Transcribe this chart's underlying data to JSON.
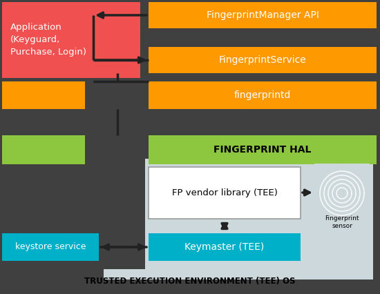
{
  "colors": {
    "red": "#f05050",
    "orange": "#ff9900",
    "green": "#8dc63f",
    "cyan": "#00b0c8",
    "dark_gray": "#404040",
    "light_gray": "#cdd8dc",
    "white": "#ffffff",
    "black": "#000000"
  },
  "title": "TRUSTED EXECUTION ENVIRONMENT (TEE) OS",
  "sensor_label_line1": "Fingerprint",
  "sensor_label_line2": "sensor"
}
